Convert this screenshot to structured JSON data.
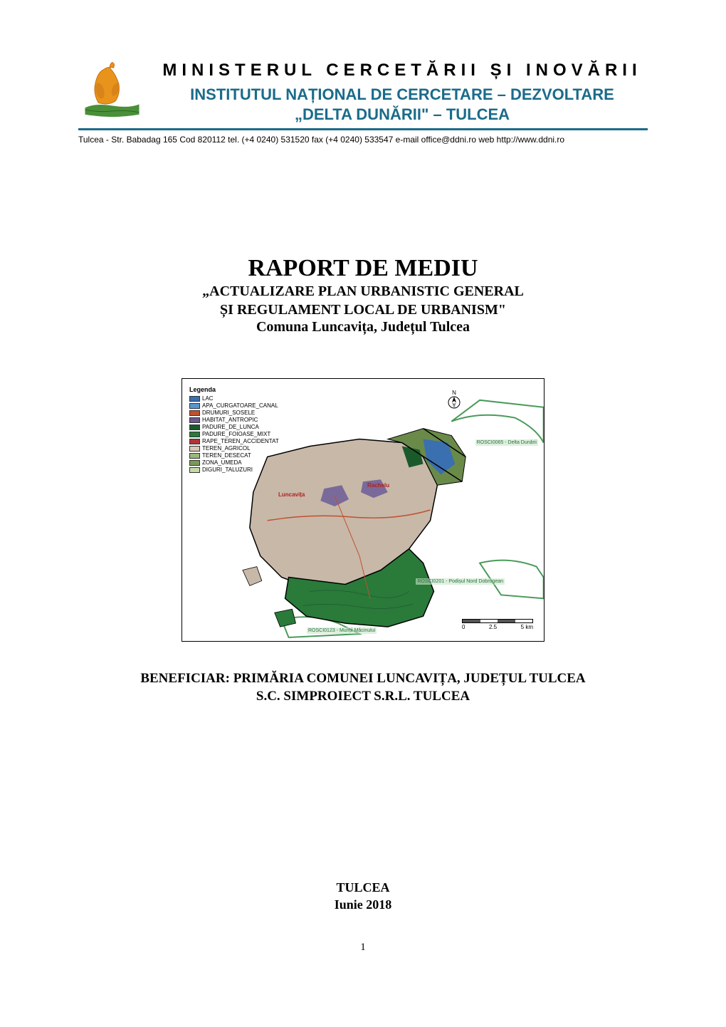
{
  "header": {
    "ministry": "MINISTERUL CERCETĂRII ȘI INOVĂRII",
    "institute_line1": "INSTITUTUL NAȚIONAL DE CERCETARE – DEZVOLTARE",
    "institute_line2": "„DELTA DUNĂRII\" – TULCEA",
    "contact": "Tulcea - Str. Babadag 165  Cod 820112  tel. (+4 0240) 531520  fax (+4 0240) 533547  e-mail office@ddni.ro  web http://www.ddni.ro",
    "logo_colors": {
      "bird_body": "#e8941c",
      "bird_outline": "#c76a0a",
      "water": "#4a8f3a"
    },
    "rule_color": "#1a6b8a",
    "institute_color": "#1a6b8a"
  },
  "title_block": {
    "main": "RAPORT DE MEDIU",
    "sub_line1": "„ACTUALIZARE PLAN URBANISTIC GENERAL",
    "sub_line2": "ȘI REGULAMENT LOCAL DE URBANISM\"",
    "commune": "Comuna Luncavița, Județul Tulcea"
  },
  "map": {
    "legend_title": "Legenda",
    "legend_items": [
      {
        "label": "LAC",
        "color": "#3a6fb0"
      },
      {
        "label": "APA_CURGATOARE_CANAL",
        "color": "#5a95d0"
      },
      {
        "label": "DRUMURI_SOSELE",
        "color": "#c05030"
      },
      {
        "label": "HABITAT_ANTROPIC",
        "color": "#6a5a8a"
      },
      {
        "label": "PADURE_DE_LUNCA",
        "color": "#1a5a2a"
      },
      {
        "label": "PADURE_FOIOASE_MIXT",
        "color": "#2a7a3a"
      },
      {
        "label": "RAPE_TEREN_ACCIDENTAT",
        "color": "#b03535"
      },
      {
        "label": "TEREN_AGRICOL",
        "color": "#d8c8b8"
      },
      {
        "label": "TEREN_DESECAT",
        "color": "#9ab878"
      },
      {
        "label": "ZONA_UMEDA",
        "color": "#7a9a5a"
      },
      {
        "label": "DIGURI_TALUZURI",
        "color": "#c8d8a8"
      }
    ],
    "place_labels": {
      "luncavita": "Luncavița",
      "rachelu": "Rachelu"
    },
    "site_labels": {
      "delta": "ROSCI0065 - Delta Dunării",
      "macin": "ROSCI0123 - Munții Măcinului",
      "dobrogea": "ROSCI0201 - Podișul Nord Dobrogean"
    },
    "scale": {
      "ticks": [
        "0",
        "2.5",
        "5 km"
      ],
      "segments": [
        {
          "color": "#555555"
        },
        {
          "color": "#ffffff"
        },
        {
          "color": "#555555"
        },
        {
          "color": "#ffffff"
        }
      ]
    },
    "compass_label": "N",
    "region_colors": {
      "agricultural": "#c8b8a8",
      "forest_dark": "#1a5a2a",
      "forest_green": "#2a7a3a",
      "lake": "#3a6fb0",
      "wetland": "#6a8a4a",
      "anthropic": "#7a6a9a",
      "outline_green": "#4a9a5a"
    }
  },
  "beneficiar": {
    "line1": "BENEFICIAR: PRIMĂRIA COMUNEI LUNCAVIȚA, JUDEȚUL TULCEA",
    "line2": "S.C. SIMPROIECT S.R.L. TULCEA"
  },
  "footer": {
    "city": "TULCEA",
    "date": "Iunie 2018"
  },
  "page_number": "1"
}
